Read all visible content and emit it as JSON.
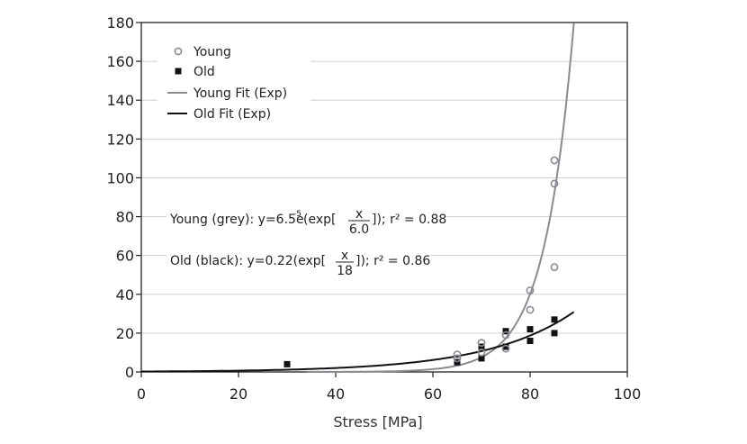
{
  "chart_data": {
    "type": "scatter",
    "xlabel": "Stress [MPa]",
    "ylabel": "",
    "xlim": [
      0,
      100
    ],
    "ylim": [
      0,
      180
    ],
    "xticks": [
      0,
      20,
      40,
      60,
      80,
      100
    ],
    "yticks": [
      0,
      20,
      40,
      60,
      80,
      100,
      120,
      140,
      160,
      180
    ],
    "grid": "horizontal",
    "legend_position": "top-left",
    "legend": [
      "Young",
      "Old",
      "Young Fit (Exp)",
      "Old Fit (Exp)"
    ],
    "colors": {
      "young": "#8a8a92",
      "old": "#111111",
      "grid": "#d0d0d0"
    },
    "series": [
      {
        "name": "Young",
        "marker": "open-circle",
        "x": [
          65,
          65,
          70,
          70,
          75,
          75,
          80,
          80,
          85,
          85,
          85
        ],
        "y": [
          7,
          9,
          10,
          15,
          12,
          19,
          32,
          42,
          54,
          97,
          109
        ]
      },
      {
        "name": "Old",
        "marker": "filled-square",
        "x": [
          30,
          65,
          70,
          70,
          75,
          75,
          80,
          80,
          85,
          85
        ],
        "y": [
          4,
          5,
          7,
          13,
          13,
          21,
          16,
          22,
          20,
          27
        ]
      }
    ],
    "fits": [
      {
        "name": "Young Fit (Exp)",
        "a": 6.5e-05,
        "b": 6.0,
        "x_range": [
          34,
          89
        ]
      },
      {
        "name": "Old Fit (Exp)",
        "a": 0.22,
        "b": 18,
        "x_range": [
          0,
          89
        ]
      }
    ],
    "annotations": {
      "young_prefix": "Young (grey): y=6.5e",
      "young_exp": "-5",
      "young_mid": "(exp[",
      "young_num": "x",
      "young_den": "6.0",
      "young_suffix": "]); r² = 0.88",
      "old_prefix": "Old (black): y=0.22(exp[",
      "old_num": "x",
      "old_den": "18",
      "old_suffix": "]); r² = 0.86"
    }
  }
}
